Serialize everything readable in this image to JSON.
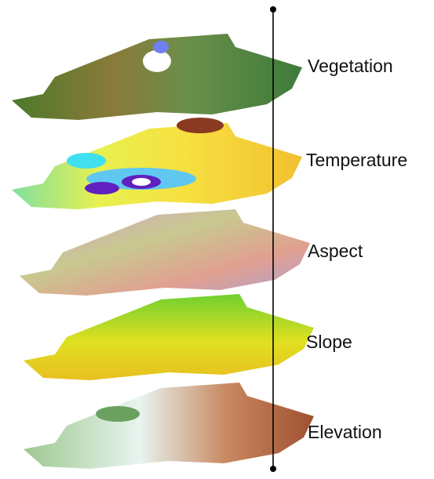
{
  "layers": [
    {
      "label": "Vegetation"
    },
    {
      "label": "Temperature"
    },
    {
      "label": "Aspect"
    },
    {
      "label": "Slope"
    },
    {
      "label": "Elevation"
    }
  ]
}
